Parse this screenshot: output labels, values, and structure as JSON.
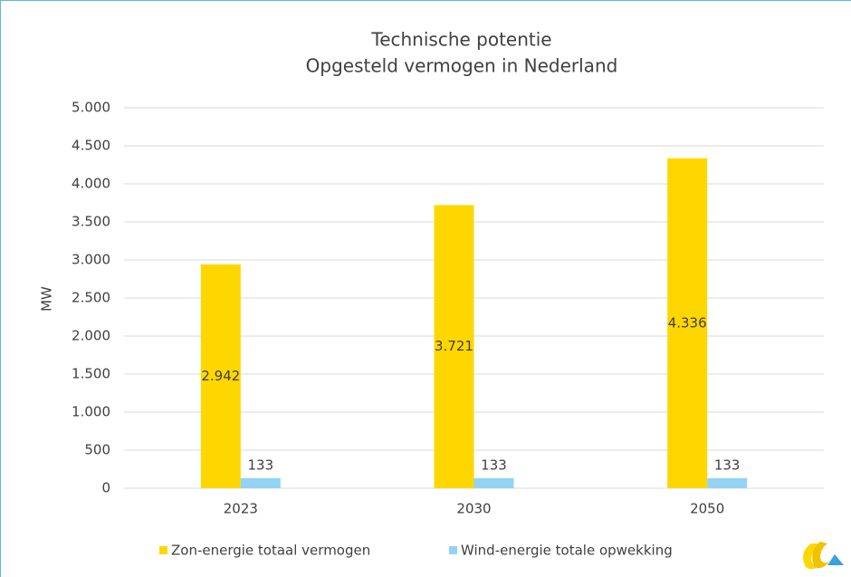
{
  "chart_data": {
    "type": "bar",
    "title": "Technische potentie",
    "subtitle": "Opgesteld vermogen in Nederland",
    "y_label": "MW",
    "categories": [
      "2023",
      "2030",
      "2050"
    ],
    "series": [
      {
        "name": "Zon-energie totaal vermogen",
        "color": "#ffd700",
        "values": [
          2942,
          3721,
          4336
        ],
        "value_labels": [
          "2.942",
          "3.721",
          "4.336"
        ]
      },
      {
        "name": "Wind-energie totale opwekking",
        "color": "#93d3f5",
        "values": [
          133,
          133,
          133
        ]
      }
    ],
    "ylim": [
      0,
      5000
    ],
    "yticks": [
      0,
      500,
      {
        "value": 1000,
        "label": "1.000"
      },
      {
        "value": 1500,
        "label": "1.500"
      },
      {
        "value": 2000,
        "label": "2.000"
      },
      {
        "value": 2500,
        "label": "2.500"
      },
      {
        "value": 3000,
        "label": "3.000"
      },
      {
        "value": 3500,
        "label": "3.500"
      },
      {
        "value": 4000,
        "label": "4.000"
      },
      {
        "value": 4500,
        "label": "4.500"
      },
      {
        "value": 5000,
        "label": "5.000"
      }
    ],
    "grid": true,
    "legend": "bottom"
  }
}
